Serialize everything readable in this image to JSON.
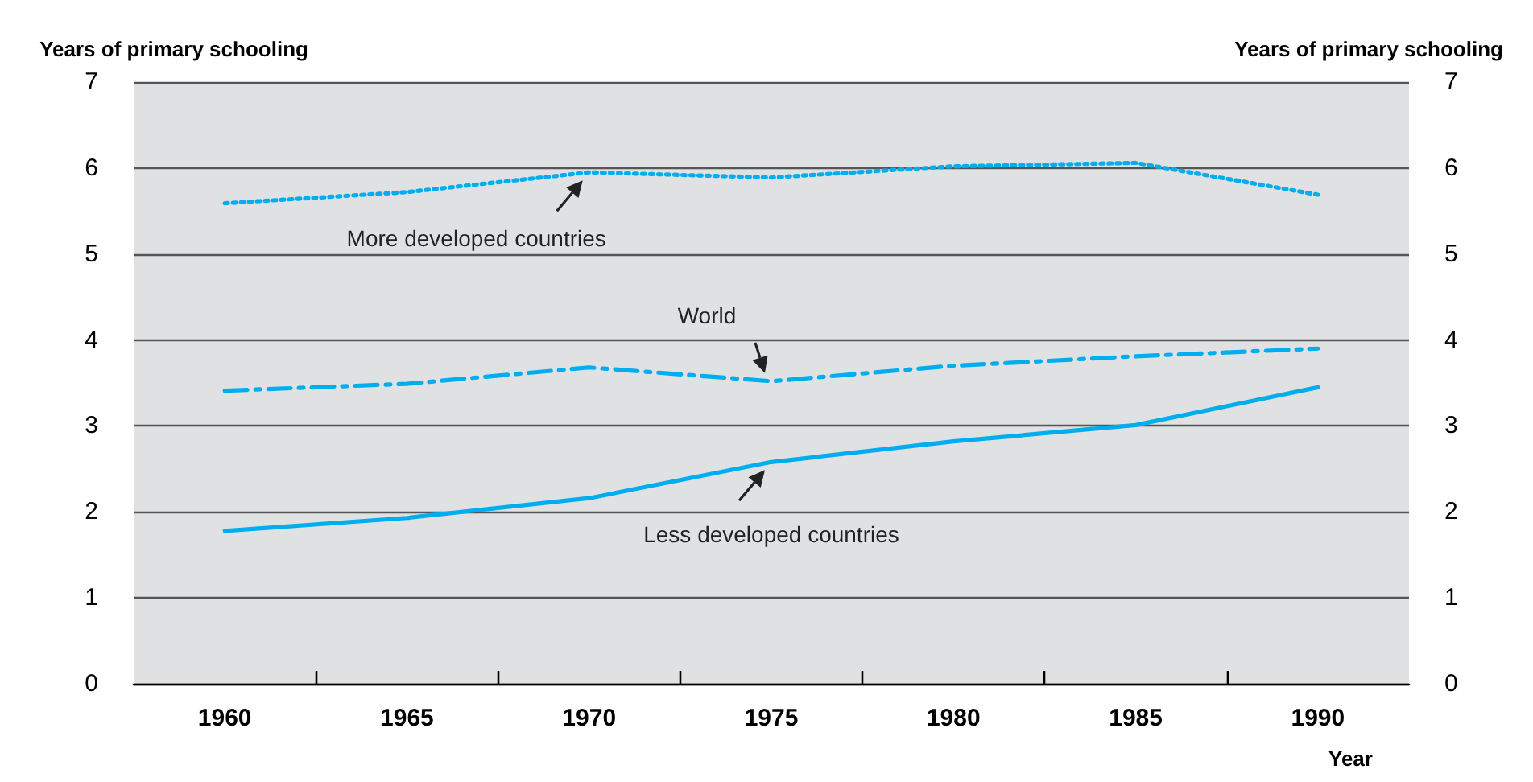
{
  "chart_data": {
    "type": "line",
    "ylabel": "Years of primary schooling",
    "y2label": "Years of primary schooling",
    "xlabel": "Year",
    "x": [
      1960,
      1965,
      1970,
      1975,
      1980,
      1985,
      1990
    ],
    "series": [
      {
        "name": "More developed countries",
        "color": "#00aeef",
        "line_style": "dotted",
        "values": [
          5.59,
          5.72,
          5.95,
          5.89,
          6.02,
          6.06,
          5.69
        ]
      },
      {
        "name": "World",
        "color": "#00aeef",
        "line_style": "dashed",
        "values": [
          3.41,
          3.49,
          3.68,
          3.52,
          3.7,
          3.81,
          3.9
        ]
      },
      {
        "name": "Less developed countries",
        "color": "#00aeef",
        "line_style": "solid",
        "values": [
          1.78,
          1.93,
          2.16,
          2.58,
          2.82,
          3.01,
          3.45
        ]
      }
    ],
    "xlim": [
      1957.5,
      1992.5
    ],
    "xticks": [
      1960,
      {
        "value": 1962.5,
        "label": null
      },
      1965,
      {
        "value": 1967.5,
        "label": null
      },
      1970,
      {
        "value": 1972.5,
        "label": null
      },
      1975,
      {
        "value": 1977.5,
        "label": null
      },
      1980,
      {
        "value": 1982.5,
        "label": null
      },
      1985,
      {
        "value": 1987.5,
        "label": null
      },
      1990
    ],
    "ylim": [
      0,
      7
    ],
    "yticks": [
      0,
      1,
      2,
      3,
      4,
      5,
      6,
      7
    ],
    "y2lim": [
      0,
      7
    ],
    "y2ticks": [
      0,
      1,
      2,
      3,
      4,
      5,
      6,
      7
    ],
    "grid": "y",
    "legend": false,
    "marker": "none"
  }
}
